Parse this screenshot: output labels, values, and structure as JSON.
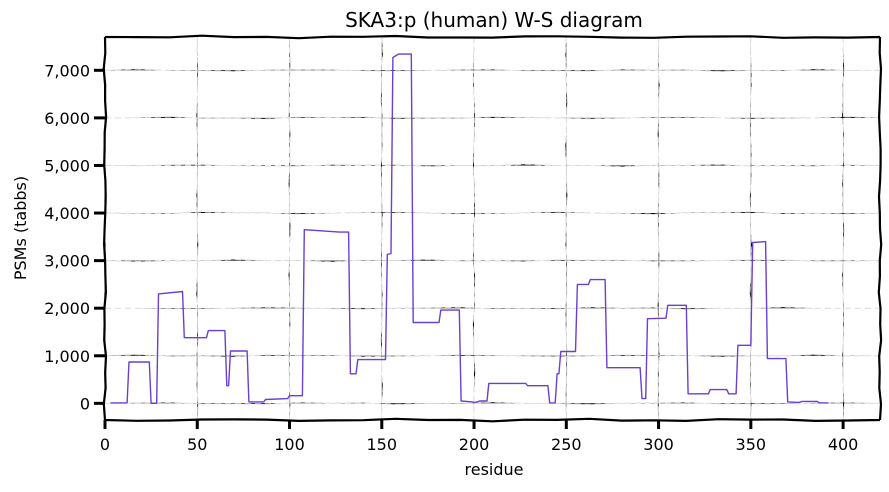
{
  "chart_data": {
    "type": "line",
    "title": "SKA3:p (human) W-S diagram",
    "xlabel": "residue",
    "ylabel": "PSMs (tabbs)",
    "xlim": [
      0,
      420
    ],
    "ylim": [
      -350,
      7700
    ],
    "xticks": [
      0,
      50,
      100,
      150,
      200,
      250,
      300,
      350,
      400
    ],
    "yticks": [
      0,
      1000,
      2000,
      3000,
      4000,
      5000,
      6000,
      7000
    ],
    "ytick_labels": [
      "0",
      "1,000",
      "2,000",
      "3,000",
      "4,000",
      "5,000",
      "6,000",
      "7,000"
    ],
    "grid": true,
    "color": "#6a3fd1",
    "series": [
      {
        "name": "",
        "points": [
          [
            3,
            10
          ],
          [
            12,
            10
          ],
          [
            13,
            870
          ],
          [
            24,
            870
          ],
          [
            25,
            0
          ],
          [
            28,
            0
          ],
          [
            29,
            2300
          ],
          [
            42,
            2350
          ],
          [
            43,
            1380
          ],
          [
            55,
            1380
          ],
          [
            56,
            1530
          ],
          [
            65,
            1530
          ],
          [
            66,
            370
          ],
          [
            67,
            370
          ],
          [
            68,
            1100
          ],
          [
            77,
            1100
          ],
          [
            78,
            30
          ],
          [
            86,
            30
          ],
          [
            87,
            80
          ],
          [
            99,
            100
          ],
          [
            100,
            160
          ],
          [
            107,
            160
          ],
          [
            108,
            3650
          ],
          [
            127,
            3600
          ],
          [
            132,
            3600
          ],
          [
            133,
            620
          ],
          [
            136,
            620
          ],
          [
            137,
            920
          ],
          [
            152,
            920
          ],
          [
            153,
            3130
          ],
          [
            155,
            3150
          ],
          [
            156,
            7270
          ],
          [
            159,
            7340
          ],
          [
            166,
            7340
          ],
          [
            167,
            1700
          ],
          [
            181,
            1700
          ],
          [
            182,
            1960
          ],
          [
            192,
            1960
          ],
          [
            193,
            50
          ],
          [
            199,
            30
          ],
          [
            200,
            20
          ],
          [
            202,
            30
          ],
          [
            203,
            50
          ],
          [
            207,
            50
          ],
          [
            208,
            420
          ],
          [
            228,
            420
          ],
          [
            229,
            370
          ],
          [
            240,
            370
          ],
          [
            241,
            10
          ],
          [
            244,
            10
          ],
          [
            245,
            620
          ],
          [
            246,
            620
          ],
          [
            247,
            1090
          ],
          [
            255,
            1090
          ],
          [
            256,
            2500
          ],
          [
            262,
            2500
          ],
          [
            263,
            2600
          ],
          [
            271,
            2600
          ],
          [
            272,
            750
          ],
          [
            290,
            750
          ],
          [
            291,
            100
          ],
          [
            293,
            100
          ],
          [
            294,
            1780
          ],
          [
            304,
            1790
          ],
          [
            305,
            2060
          ],
          [
            315,
            2060
          ],
          [
            316,
            200
          ],
          [
            327,
            200
          ],
          [
            328,
            290
          ],
          [
            337,
            290
          ],
          [
            338,
            200
          ],
          [
            342,
            200
          ],
          [
            343,
            1220
          ],
          [
            350,
            1220
          ],
          [
            351,
            3380
          ],
          [
            358,
            3400
          ],
          [
            359,
            940
          ],
          [
            369,
            940
          ],
          [
            370,
            30
          ],
          [
            376,
            20
          ],
          [
            378,
            40
          ],
          [
            386,
            40
          ],
          [
            387,
            10
          ],
          [
            392,
            10
          ]
        ]
      }
    ]
  }
}
